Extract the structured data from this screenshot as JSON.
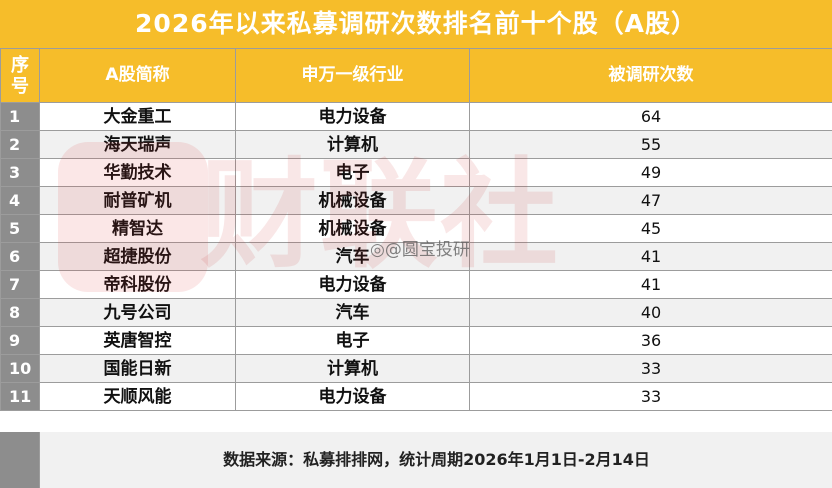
{
  "title": "2026年以来私募调研次数排名前十个股（A股）",
  "headers": {
    "index": "序号",
    "name": "A股简称",
    "industry": "申万一级行业",
    "count": "被调研次数"
  },
  "rows": [
    {
      "idx": "1",
      "name": "大金重工",
      "industry": "电力设备",
      "count": "64"
    },
    {
      "idx": "2",
      "name": "海天瑞声",
      "industry": "计算机",
      "count": "55"
    },
    {
      "idx": "3",
      "name": "华勤技术",
      "industry": "电子",
      "count": "49"
    },
    {
      "idx": "4",
      "name": "耐普矿机",
      "industry": "机械设备",
      "count": "47"
    },
    {
      "idx": "5",
      "name": "精智达",
      "industry": "机械设备",
      "count": "45"
    },
    {
      "idx": "6",
      "name": "超捷股份",
      "industry": "汽车",
      "count": "41"
    },
    {
      "idx": "7",
      "name": "帝科股份",
      "industry": "电力设备",
      "count": "41"
    },
    {
      "idx": "8",
      "name": "九号公司",
      "industry": "汽车",
      "count": "40"
    },
    {
      "idx": "9",
      "name": "英唐智控",
      "industry": "电子",
      "count": "36"
    },
    {
      "idx": "10",
      "name": "国能日新",
      "industry": "计算机",
      "count": "33"
    },
    {
      "idx": "11",
      "name": "天顺风能",
      "industry": "电力设备",
      "count": "33"
    }
  ],
  "footnote": "数据来源：私募排排网，统计周期2026年1月1日-2月14日",
  "watermark": {
    "brand": "财联社",
    "user": "@圆宝投研",
    "logo_icon": "cls-logo-icon",
    "weibo_icon": "weibo-icon"
  },
  "colors": {
    "header_bg": "#f6bd2a",
    "header_text": "#ffffff",
    "index_col_bg": "#8d8d8d",
    "row_alt_bg": "#f1f1f1",
    "watermark": "#c82828"
  },
  "chart_data": {
    "type": "table",
    "title": "2026年以来私募调研次数排名前十个股（A股）",
    "columns": [
      "序号",
      "A股简称",
      "申万一级行业",
      "被调研次数"
    ],
    "categories": [
      "大金重工",
      "海天瑞声",
      "华勤技术",
      "耐普矿机",
      "精智达",
      "超捷股份",
      "帝科股份",
      "九号公司",
      "英唐智控",
      "国能日新",
      "天顺风能"
    ],
    "industries": [
      "电力设备",
      "计算机",
      "电子",
      "机械设备",
      "机械设备",
      "汽车",
      "电力设备",
      "汽车",
      "电子",
      "计算机",
      "电力设备"
    ],
    "values": [
      64,
      55,
      49,
      47,
      45,
      41,
      41,
      40,
      36,
      33,
      33
    ],
    "note": "数据来源：私募排排网，统计周期2026年1月1日-2月14日"
  }
}
